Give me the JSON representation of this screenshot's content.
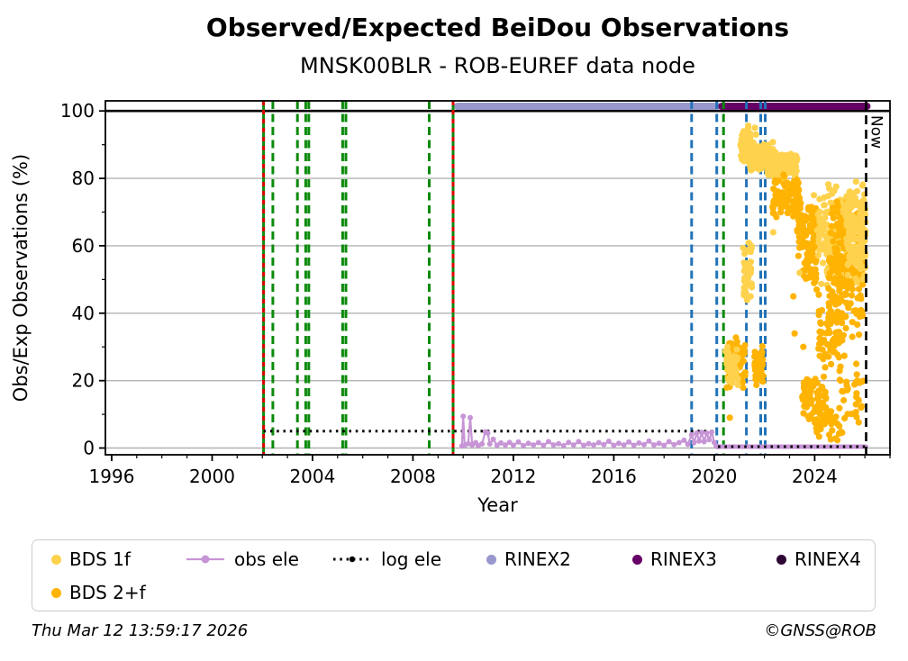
{
  "title": "Observed/Expected BeiDou Observations",
  "subtitle": "MNSK00BLR - ROB-EUREF data node",
  "footer": {
    "timestamp": "Thu Mar 12 13:59:17 2026",
    "credit": "©GNSS@ROB"
  },
  "chart_data": {
    "type": "scatter",
    "title": "Observed/Expected BeiDou Observations",
    "subtitle": "MNSK00BLR - ROB-EUREF data node",
    "xlabel": "Year",
    "ylabel": "Obs/Exp Observations (%)",
    "xlim": [
      1995.75,
      2027.0
    ],
    "ylim": [
      -2,
      103
    ],
    "xticks": [
      1996,
      2000,
      2004,
      2008,
      2012,
      2016,
      2020,
      2024
    ],
    "xminor_step": 1,
    "yticks": [
      0,
      20,
      40,
      60,
      80,
      100
    ],
    "yminor": [
      10,
      30,
      50,
      70,
      90
    ],
    "grid_y": [
      0,
      20,
      40,
      60,
      80
    ],
    "ref_line_100": {
      "y": 100,
      "color": "#000000"
    },
    "now_line": {
      "x": 2026.05,
      "label": "Now",
      "color": "#000000"
    },
    "colors": {
      "bds_1f": "#FFD24E",
      "bds_2f": "#FFB302",
      "obs_ele": "#C795D6",
      "log_ele": "#000000",
      "rinex2": "#9898CE",
      "rinex3": "#660066",
      "rinex4": "#2E0633",
      "event_green": "#0B8A0B",
      "event_blue": "#2273B8",
      "event_red": "#DE0000",
      "grid": "#B3B3B3"
    },
    "events": [
      {
        "x": 2002.05,
        "color": "green",
        "style": "solid+red"
      },
      {
        "x": 2002.42,
        "color": "green",
        "style": "dashed"
      },
      {
        "x": 2003.4,
        "color": "green",
        "style": "dashed"
      },
      {
        "x": 2003.73,
        "color": "green",
        "style": "dashed"
      },
      {
        "x": 2003.85,
        "color": "green",
        "style": "dashed"
      },
      {
        "x": 2005.2,
        "color": "green",
        "style": "dashed"
      },
      {
        "x": 2005.33,
        "color": "green",
        "style": "dashed"
      },
      {
        "x": 2008.65,
        "color": "green",
        "style": "dashed"
      },
      {
        "x": 2009.6,
        "color": "green",
        "style": "solid+red"
      },
      {
        "x": 2019.1,
        "color": "blue",
        "style": "dashed"
      },
      {
        "x": 2020.1,
        "color": "blue",
        "style": "dashed"
      },
      {
        "x": 2020.37,
        "color": "green",
        "style": "dashed"
      },
      {
        "x": 2021.28,
        "color": "blue",
        "style": "dashed"
      },
      {
        "x": 2021.85,
        "color": "blue",
        "style": "dashed"
      },
      {
        "x": 2022.03,
        "color": "blue",
        "style": "dashed"
      }
    ],
    "rinex_bars": [
      {
        "name": "RINEX2",
        "from": 2009.78,
        "to": 2020.12,
        "color": "#9898CE",
        "y": 101.4
      },
      {
        "name": "RINEX3",
        "from": 2020.3,
        "to": 2026.08,
        "color": "#660066",
        "y": 101.4
      }
    ],
    "log_ele": {
      "segments": [
        [
          [
            2002.05,
            5
          ],
          [
            2020.12,
            5
          ]
        ],
        [
          [
            2020.12,
            0.4
          ],
          [
            2026.05,
            0.4
          ]
        ]
      ]
    },
    "obs_ele": {
      "points": [
        [
          2009.95,
          0.6
        ],
        [
          2010.0,
          9.4
        ],
        [
          2010.06,
          0.8
        ],
        [
          2010.2,
          1.3
        ],
        [
          2010.28,
          9.0
        ],
        [
          2010.36,
          0.9
        ],
        [
          2010.5,
          1.6
        ],
        [
          2010.6,
          0.7
        ],
        [
          2010.75,
          1.2
        ],
        [
          2010.88,
          4.8
        ],
        [
          2010.98,
          4.4
        ],
        [
          2011.06,
          1.2
        ],
        [
          2011.2,
          2.6
        ],
        [
          2011.35,
          0.8
        ],
        [
          2011.5,
          1.5
        ],
        [
          2011.68,
          0.9
        ],
        [
          2011.85,
          1.7
        ],
        [
          2012.0,
          0.8
        ],
        [
          2012.2,
          1.8
        ],
        [
          2012.4,
          0.7
        ],
        [
          2012.6,
          1.4
        ],
        [
          2012.8,
          0.9
        ],
        [
          2013.0,
          1.6
        ],
        [
          2013.2,
          0.8
        ],
        [
          2013.4,
          1.9
        ],
        [
          2013.6,
          0.9
        ],
        [
          2013.8,
          1.3
        ],
        [
          2014.0,
          0.7
        ],
        [
          2014.2,
          1.7
        ],
        [
          2014.4,
          0.9
        ],
        [
          2014.6,
          1.9
        ],
        [
          2014.8,
          0.8
        ],
        [
          2015.0,
          1.3
        ],
        [
          2015.2,
          0.9
        ],
        [
          2015.4,
          1.6
        ],
        [
          2015.6,
          1.0
        ],
        [
          2015.8,
          2.0
        ],
        [
          2016.0,
          0.8
        ],
        [
          2016.2,
          1.4
        ],
        [
          2016.4,
          0.9
        ],
        [
          2016.6,
          1.8
        ],
        [
          2016.8,
          0.8
        ],
        [
          2017.0,
          1.5
        ],
        [
          2017.2,
          1.0
        ],
        [
          2017.4,
          2.1
        ],
        [
          2017.6,
          0.9
        ],
        [
          2017.8,
          1.4
        ],
        [
          2018.0,
          0.8
        ],
        [
          2018.2,
          1.9
        ],
        [
          2018.4,
          1.0
        ],
        [
          2018.6,
          1.6
        ],
        [
          2018.8,
          2.3
        ],
        [
          2018.95,
          1.1
        ],
        [
          2019.1,
          3.9
        ],
        [
          2019.2,
          1.6
        ],
        [
          2019.3,
          4.4
        ],
        [
          2019.4,
          2.1
        ],
        [
          2019.5,
          4.6
        ],
        [
          2019.6,
          1.9
        ],
        [
          2019.7,
          4.4
        ],
        [
          2019.8,
          2.5
        ],
        [
          2019.9,
          4.7
        ],
        [
          2020.0,
          1.7
        ],
        [
          2020.08,
          0.6
        ],
        [
          2020.13,
          0.4
        ]
      ],
      "tail": [
        [
          2020.15,
          0.4
        ],
        [
          2026.05,
          0.4
        ]
      ]
    },
    "scatter_clusters": [
      {
        "series": "BDS 1f",
        "x": [
          2021.05,
          2021.55
        ],
        "y": [
          84,
          93
        ],
        "n": 70
      },
      {
        "series": "BDS 1f",
        "x": [
          2021.1,
          2021.45
        ],
        "y": [
          91,
          96
        ],
        "n": 12
      },
      {
        "series": "BDS 1f",
        "x": [
          2021.35,
          2022.35
        ],
        "y": [
          82,
          91
        ],
        "n": 150
      },
      {
        "series": "BDS 1f",
        "x": [
          2022.1,
          2023.3
        ],
        "y": [
          79,
          88
        ],
        "n": 130
      },
      {
        "series": "BDS 2+f",
        "x": [
          2022.3,
          2023.4
        ],
        "y": [
          68,
          82
        ],
        "n": 100
      },
      {
        "series": "BDS 2+f",
        "x": [
          2023.3,
          2024.05
        ],
        "y": [
          55,
          78
        ],
        "n": 80
      },
      {
        "series": "BDS 2+f",
        "x": [
          2023.5,
          2024.1
        ],
        "y": [
          45,
          62
        ],
        "n": 30
      },
      {
        "series": "BDS 1f",
        "x": [
          2021.15,
          2021.5
        ],
        "y": [
          42,
          62
        ],
        "n": 60
      },
      {
        "series": "BDS 2+f",
        "x": [
          2020.5,
          2021.25
        ],
        "y": [
          17,
          33
        ],
        "n": 80
      },
      {
        "series": "BDS 1f",
        "x": [
          2020.55,
          2020.95
        ],
        "y": [
          18,
          30
        ],
        "n": 30
      },
      {
        "series": "BDS 2+f",
        "x": [
          2021.6,
          2021.97
        ],
        "y": [
          18,
          31
        ],
        "n": 50
      },
      {
        "series": "BDS 2+f",
        "x": [
          2023.5,
          2024.45
        ],
        "y": [
          6,
          24
        ],
        "n": 60
      },
      {
        "series": "BDS 2+f",
        "x": [
          2023.95,
          2025.1
        ],
        "y": [
          2,
          12
        ],
        "n": 45
      },
      {
        "series": "BDS 1f",
        "x": [
          2024.1,
          2025.4
        ],
        "y": [
          45,
          80
        ],
        "n": 180
      },
      {
        "series": "BDS 2+f",
        "x": [
          2024.55,
          2025.95
        ],
        "y": [
          30,
          76
        ],
        "n": 230
      },
      {
        "series": "BDS 1f",
        "x": [
          2025.25,
          2026.03
        ],
        "y": [
          48,
          80
        ],
        "n": 170
      },
      {
        "series": "BDS 2+f",
        "x": [
          2024.15,
          2025.1
        ],
        "y": [
          22,
          46
        ],
        "n": 60
      },
      {
        "series": "BDS 2+f",
        "x": [
          2024.9,
          2026.0
        ],
        "y": [
          6,
          28
        ],
        "n": 30
      },
      {
        "series": "BDS 1f",
        "x": [
          2020.45,
          2020.6
        ],
        "y": [
          22,
          31
        ],
        "n": 12
      }
    ],
    "scatter_singles": [
      {
        "series": "BDS 1f",
        "x": 2023.97,
        "y": 75
      },
      {
        "series": "BDS 1f",
        "x": 2021.62,
        "y": 95
      },
      {
        "series": "BDS 1f",
        "x": 2021.66,
        "y": 93
      },
      {
        "series": "BDS 1f",
        "x": 2022.35,
        "y": 64
      },
      {
        "series": "BDS 1f",
        "x": 2023.4,
        "y": 52
      },
      {
        "series": "BDS 2+f",
        "x": 2023.15,
        "y": 45
      },
      {
        "series": "BDS 2+f",
        "x": 2023.2,
        "y": 34
      },
      {
        "series": "BDS 2+f",
        "x": 2023.55,
        "y": 30
      },
      {
        "series": "BDS 2+f",
        "x": 2020.62,
        "y": 9
      },
      {
        "series": "BDS 2+f",
        "x": 2024.3,
        "y": 18
      },
      {
        "series": "BDS 2+f",
        "x": 2025.5,
        "y": 33
      },
      {
        "series": "BDS 2+f",
        "x": 2025.7,
        "y": 20
      },
      {
        "series": "BDS 2+f",
        "x": 2025.85,
        "y": 12
      }
    ],
    "legend": [
      {
        "label": "BDS 1f",
        "marker": "dot",
        "color": "#FFD24E",
        "row": 0,
        "col": 0
      },
      {
        "label": "obs ele",
        "marker": "line-dot",
        "color": "#C795D6",
        "row": 0,
        "col": 1
      },
      {
        "label": "log ele",
        "marker": "dotted-line",
        "color": "#000000",
        "row": 0,
        "col": 2
      },
      {
        "label": "RINEX2",
        "marker": "dot",
        "color": "#9898CE",
        "row": 0,
        "col": 3
      },
      {
        "label": "RINEX3",
        "marker": "dot",
        "color": "#660066",
        "row": 0,
        "col": 4
      },
      {
        "label": "RINEX4",
        "marker": "dot",
        "color": "#2E0633",
        "row": 0,
        "col": 5
      },
      {
        "label": "BDS 2+f",
        "marker": "dot",
        "color": "#FFB302",
        "row": 1,
        "col": 0
      }
    ]
  }
}
